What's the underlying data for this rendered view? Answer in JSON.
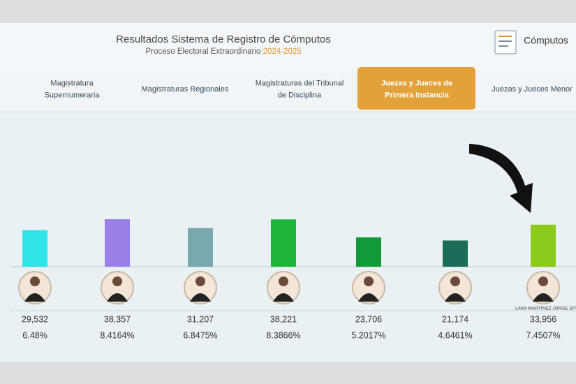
{
  "header": {
    "title": "Resultados Sistema de Registro de Cómputos",
    "subtitle": "Proceso Electoral Extraordinario",
    "subtitle_years": "2024-2025",
    "button": "Cómputos"
  },
  "tabs": [
    [
      "Magistratura",
      "Supernumeraria"
    ],
    [
      "Magistraturas Regionales"
    ],
    [
      "Magistraturas del Tribunal",
      "de Disciplina"
    ],
    [
      "Juezas y Jueces de",
      "Primera Instancia"
    ],
    [
      "Juezas y Jueces Menor"
    ]
  ],
  "active_tab": 3,
  "chart_data": {
    "type": "bar",
    "values": [
      29532,
      38357,
      31207,
      38221,
      23706,
      21174,
      33956
    ],
    "value_labels": [
      "29,532",
      "38,357",
      "31,207",
      "38,221",
      "23,706",
      "21,174",
      "33,956"
    ],
    "percentages": [
      6.48,
      8.4164,
      6.8475,
      8.3866,
      5.2017,
      4.6461,
      7.4507
    ],
    "percentage_labels": [
      "6.48%",
      "8.4164%",
      "6.8475%",
      "8.3866%",
      "5.2017%",
      "4.6461%",
      "7.4507%"
    ],
    "colors": [
      "#2fe3e6",
      "#9a80e6",
      "#79a8ae",
      "#1db43a",
      "#12993a",
      "#1b6d59",
      "#8bcb1b"
    ],
    "annotation": "LARA MARTINEZ JORGE EPIC"
  }
}
